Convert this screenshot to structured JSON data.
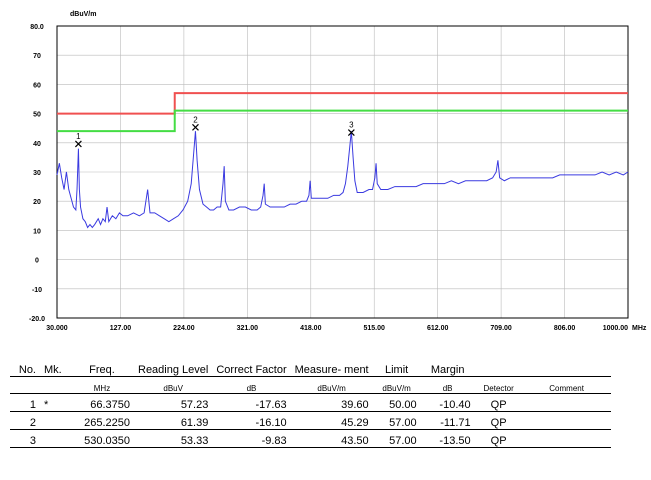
{
  "chart_data": {
    "type": "line",
    "y_unit": "dBuV/m",
    "x_unit": "MHz",
    "ylim": [
      -20,
      80
    ],
    "xlim": [
      30,
      1000
    ],
    "y_ticks": [
      "80.0",
      "70",
      "60",
      "50",
      "40",
      "30",
      "20",
      "10",
      "0",
      "-10",
      "-20.0"
    ],
    "x_ticks": [
      "30.000",
      "127.00",
      "224.00",
      "321.00",
      "418.00",
      "515.00",
      "612.00",
      "709.00",
      "806.00",
      "1000.00"
    ],
    "grid": true,
    "limit_lines": [
      {
        "color": "#f05050",
        "points": [
          [
            30,
            50
          ],
          [
            230,
            50
          ],
          [
            230,
            57
          ],
          [
            1000,
            57
          ]
        ]
      },
      {
        "color": "#44dd44",
        "points": [
          [
            30,
            44
          ],
          [
            230,
            44
          ],
          [
            230,
            51
          ],
          [
            1000,
            51
          ]
        ]
      }
    ],
    "markers": [
      {
        "label": "1",
        "x": 66.375,
        "y": 39.6
      },
      {
        "label": "2",
        "x": 265.225,
        "y": 45.29
      },
      {
        "label": "3",
        "x": 530.035,
        "y": 43.5
      }
    ],
    "series": [
      {
        "color": "#3a3ae0",
        "values": [
          [
            30,
            29
          ],
          [
            34,
            33
          ],
          [
            38,
            28
          ],
          [
            42,
            24
          ],
          [
            46,
            30
          ],
          [
            50,
            24
          ],
          [
            54,
            21
          ],
          [
            58,
            18
          ],
          [
            62,
            17
          ],
          [
            64,
            24
          ],
          [
            66.4,
            38
          ],
          [
            68,
            24
          ],
          [
            70,
            18
          ],
          [
            74,
            14
          ],
          [
            78,
            13
          ],
          [
            82,
            11
          ],
          [
            86,
            12
          ],
          [
            90,
            11
          ],
          [
            94,
            12
          ],
          [
            100,
            14
          ],
          [
            104,
            12
          ],
          [
            108,
            14
          ],
          [
            112,
            13
          ],
          [
            115,
            18
          ],
          [
            118,
            13
          ],
          [
            124,
            15
          ],
          [
            130,
            14
          ],
          [
            136,
            16
          ],
          [
            142,
            15
          ],
          [
            150,
            15
          ],
          [
            160,
            16
          ],
          [
            170,
            15
          ],
          [
            178,
            16
          ],
          [
            184,
            24
          ],
          [
            188,
            16
          ],
          [
            196,
            16
          ],
          [
            204,
            15
          ],
          [
            212,
            14
          ],
          [
            220,
            13
          ],
          [
            228,
            14
          ],
          [
            236,
            15
          ],
          [
            244,
            17
          ],
          [
            252,
            20
          ],
          [
            258,
            26
          ],
          [
            262,
            36
          ],
          [
            265.2,
            44
          ],
          [
            268,
            34
          ],
          [
            272,
            24
          ],
          [
            278,
            19
          ],
          [
            284,
            18
          ],
          [
            290,
            17
          ],
          [
            296,
            17
          ],
          [
            302,
            18
          ],
          [
            308,
            18
          ],
          [
            312,
            26
          ],
          [
            314,
            32
          ],
          [
            316,
            20
          ],
          [
            322,
            17
          ],
          [
            330,
            17
          ],
          [
            340,
            18
          ],
          [
            350,
            18
          ],
          [
            360,
            17
          ],
          [
            370,
            17
          ],
          [
            376,
            18
          ],
          [
            380,
            22
          ],
          [
            382,
            26
          ],
          [
            384,
            19
          ],
          [
            392,
            18
          ],
          [
            404,
            18
          ],
          [
            416,
            18
          ],
          [
            426,
            19
          ],
          [
            436,
            19
          ],
          [
            446,
            20
          ],
          [
            454,
            20
          ],
          [
            458,
            22
          ],
          [
            460,
            27
          ],
          [
            462,
            21
          ],
          [
            470,
            21
          ],
          [
            480,
            21
          ],
          [
            490,
            21
          ],
          [
            500,
            22
          ],
          [
            510,
            22
          ],
          [
            516,
            23
          ],
          [
            520,
            26
          ],
          [
            524,
            32
          ],
          [
            527,
            38
          ],
          [
            530,
            44
          ],
          [
            533,
            35
          ],
          [
            536,
            27
          ],
          [
            540,
            23
          ],
          [
            550,
            23
          ],
          [
            560,
            24
          ],
          [
            566,
            24
          ],
          [
            570,
            28
          ],
          [
            572,
            33
          ],
          [
            574,
            26
          ],
          [
            580,
            24
          ],
          [
            592,
            24
          ],
          [
            604,
            25
          ],
          [
            616,
            25
          ],
          [
            628,
            25
          ],
          [
            640,
            25
          ],
          [
            652,
            26
          ],
          [
            664,
            26
          ],
          [
            676,
            26
          ],
          [
            688,
            26
          ],
          [
            700,
            27
          ],
          [
            712,
            26
          ],
          [
            724,
            27
          ],
          [
            736,
            27
          ],
          [
            748,
            27
          ],
          [
            760,
            27
          ],
          [
            770,
            28
          ],
          [
            776,
            30
          ],
          [
            779,
            34
          ],
          [
            782,
            28
          ],
          [
            790,
            27
          ],
          [
            800,
            28
          ],
          [
            812,
            28
          ],
          [
            824,
            28
          ],
          [
            836,
            28
          ],
          [
            848,
            28
          ],
          [
            860,
            28
          ],
          [
            872,
            28
          ],
          [
            884,
            29
          ],
          [
            896,
            29
          ],
          [
            908,
            29
          ],
          [
            920,
            29
          ],
          [
            932,
            29
          ],
          [
            944,
            29
          ],
          [
            956,
            30
          ],
          [
            968,
            29
          ],
          [
            980,
            30
          ],
          [
            992,
            29
          ],
          [
            1000,
            30
          ]
        ]
      }
    ]
  },
  "table": {
    "headers": [
      "No.",
      "Mk.",
      "Freq.",
      "Reading Level",
      "Correct Factor",
      "Measure- ment",
      "Limit",
      "Margin",
      "",
      ""
    ],
    "units": [
      "",
      "",
      "MHz",
      "dBuV",
      "dB",
      "dBuV/m",
      "dBuV/m",
      "dB",
      "Detector",
      "Comment"
    ],
    "rows": [
      [
        "1",
        "*",
        "66.3750",
        "57.23",
        "-17.63",
        "39.60",
        "50.00",
        "-10.40",
        "QP",
        ""
      ],
      [
        "2",
        "",
        "265.2250",
        "61.39",
        "-16.10",
        "45.29",
        "57.00",
        "-11.71",
        "QP",
        ""
      ],
      [
        "3",
        "",
        "530.0350",
        "53.33",
        "-9.83",
        "43.50",
        "57.00",
        "-13.50",
        "QP",
        ""
      ]
    ]
  }
}
